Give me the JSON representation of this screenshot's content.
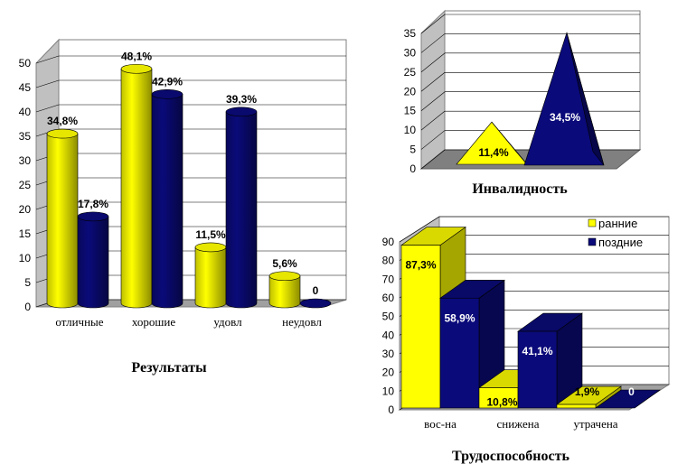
{
  "colors": {
    "early": "#ffff00",
    "late": "#0a0a7a"
  },
  "chart_data": [
    {
      "type": "bar",
      "title": "Результаты",
      "categories": [
        "отличные",
        "хорошие",
        "удовл",
        "неудовл"
      ],
      "ylim": [
        0,
        50
      ],
      "yticks": [
        "0",
        "5",
        "10",
        "15",
        "20",
        "25",
        "30",
        "35",
        "40",
        "45",
        "50"
      ],
      "series": [
        {
          "values": [
            34.8,
            48.1,
            11.5,
            5.6
          ],
          "labels": [
            "34,8%",
            "48,1%",
            "11,5%",
            "5,6%"
          ]
        },
        {
          "values": [
            17.8,
            42.9,
            39.3,
            0
          ],
          "labels": [
            "17,8%",
            "42,9%",
            "39,3%",
            "0"
          ]
        }
      ]
    },
    {
      "type": "bar",
      "title": "Инвалидность",
      "categories": [
        ""
      ],
      "ylim": [
        0,
        35
      ],
      "yticks": [
        "0",
        "5",
        "10",
        "15",
        "20",
        "25",
        "30",
        "35"
      ],
      "series": [
        {
          "values": [
            11.4
          ],
          "labels": [
            "11,4%"
          ]
        },
        {
          "values": [
            34.5
          ],
          "labels": [
            "34,5%"
          ]
        }
      ]
    },
    {
      "type": "bar",
      "title": "Трудоспособность",
      "categories": [
        "вос-на",
        "снижена",
        "утрачена"
      ],
      "ylim": [
        0,
        90
      ],
      "yticks": [
        "0",
        "10",
        "20",
        "30",
        "40",
        "50",
        "60",
        "70",
        "80",
        "90"
      ],
      "legend": [
        "ранние",
        "поздние"
      ],
      "series": [
        {
          "name": "ранние",
          "values": [
            87.3,
            10.8,
            1.9
          ],
          "labels": [
            "87,3%",
            "10,8%",
            "1,9%"
          ]
        },
        {
          "name": "поздние",
          "values": [
            58.9,
            41.1,
            0
          ],
          "labels": [
            "58,9%",
            "41,1%",
            "0"
          ]
        }
      ]
    }
  ]
}
